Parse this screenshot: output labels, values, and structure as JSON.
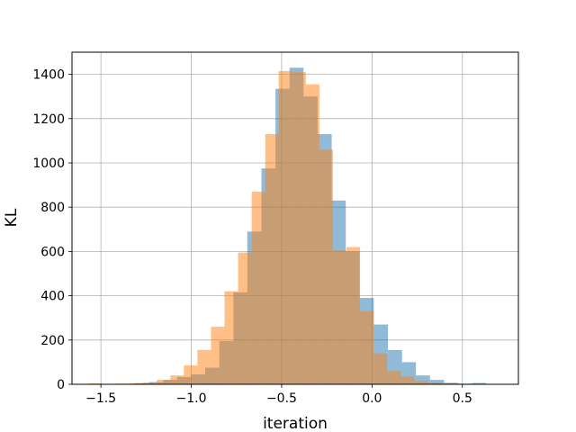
{
  "chart_data": {
    "type": "bar",
    "subtype": "overlaid-histogram",
    "title": "",
    "xlabel": "iteration",
    "ylabel": "KL",
    "xlim": [
      -1.66,
      0.81
    ],
    "ylim": [
      0,
      1500
    ],
    "xticks": [
      -1.5,
      -1.0,
      -0.5,
      0.0,
      0.5
    ],
    "xtick_labels": [
      "−1.5",
      "−1.0",
      "−0.5",
      "0.0",
      "0.5"
    ],
    "yticks": [
      0,
      200,
      400,
      600,
      800,
      1000,
      1200,
      1400
    ],
    "ytick_labels": [
      "0",
      "200",
      "400",
      "600",
      "800",
      "1000",
      "1200",
      "1400"
    ],
    "grid": true,
    "legend": "none",
    "series": [
      {
        "color": "#1f77b4",
        "opacity": 0.5,
        "bins": [
          [
            -1.545,
            -1.467,
            2
          ],
          [
            -1.467,
            -1.389,
            1
          ],
          [
            -1.389,
            -1.312,
            2
          ],
          [
            -1.312,
            -1.234,
            5
          ],
          [
            -1.234,
            -1.156,
            10
          ],
          [
            -1.156,
            -1.078,
            20
          ],
          [
            -1.078,
            -1.001,
            33
          ],
          [
            -1.001,
            -0.923,
            45
          ],
          [
            -0.923,
            -0.845,
            75
          ],
          [
            -0.845,
            -0.767,
            195
          ],
          [
            -0.767,
            -0.69,
            415
          ],
          [
            -0.69,
            -0.612,
            690
          ],
          [
            -0.612,
            -0.534,
            975
          ],
          [
            -0.534,
            -0.456,
            1335
          ],
          [
            -0.456,
            -0.379,
            1430
          ],
          [
            -0.379,
            -0.301,
            1300
          ],
          [
            -0.301,
            -0.223,
            1130
          ],
          [
            -0.223,
            -0.145,
            830
          ],
          [
            -0.145,
            -0.068,
            600
          ],
          [
            -0.068,
            0.01,
            390
          ],
          [
            0.01,
            0.088,
            270
          ],
          [
            0.088,
            0.166,
            155
          ],
          [
            0.166,
            0.243,
            100
          ],
          [
            0.243,
            0.321,
            40
          ],
          [
            0.321,
            0.399,
            20
          ],
          [
            0.399,
            0.477,
            7
          ],
          [
            0.477,
            0.554,
            3
          ],
          [
            0.554,
            0.632,
            6
          ],
          [
            0.632,
            0.71,
            1
          ]
        ]
      },
      {
        "color": "#ff7f0e",
        "opacity": 0.5,
        "bins": [
          [
            -1.566,
            -1.491,
            4
          ],
          [
            -1.491,
            -1.416,
            1
          ],
          [
            -1.416,
            -1.341,
            3
          ],
          [
            -1.341,
            -1.266,
            5
          ],
          [
            -1.266,
            -1.191,
            8
          ],
          [
            -1.191,
            -1.116,
            20
          ],
          [
            -1.116,
            -1.041,
            40
          ],
          [
            -1.041,
            -0.966,
            85
          ],
          [
            -0.966,
            -0.891,
            155
          ],
          [
            -0.891,
            -0.816,
            260
          ],
          [
            -0.816,
            -0.741,
            420
          ],
          [
            -0.741,
            -0.666,
            595
          ],
          [
            -0.666,
            -0.591,
            870
          ],
          [
            -0.591,
            -0.516,
            1130
          ],
          [
            -0.516,
            -0.441,
            1415
          ],
          [
            -0.441,
            -0.366,
            1410
          ],
          [
            -0.366,
            -0.291,
            1355
          ],
          [
            -0.291,
            -0.216,
            1060
          ],
          [
            -0.216,
            -0.141,
            605
          ],
          [
            -0.141,
            -0.066,
            620
          ],
          [
            -0.066,
            0.009,
            330
          ],
          [
            0.009,
            0.084,
            140
          ],
          [
            0.084,
            0.159,
            60
          ],
          [
            0.159,
            0.234,
            35
          ],
          [
            0.234,
            0.309,
            15
          ],
          [
            0.309,
            0.384,
            8
          ],
          [
            0.384,
            0.459,
            3
          ],
          [
            0.459,
            0.534,
            1
          ]
        ]
      }
    ]
  }
}
